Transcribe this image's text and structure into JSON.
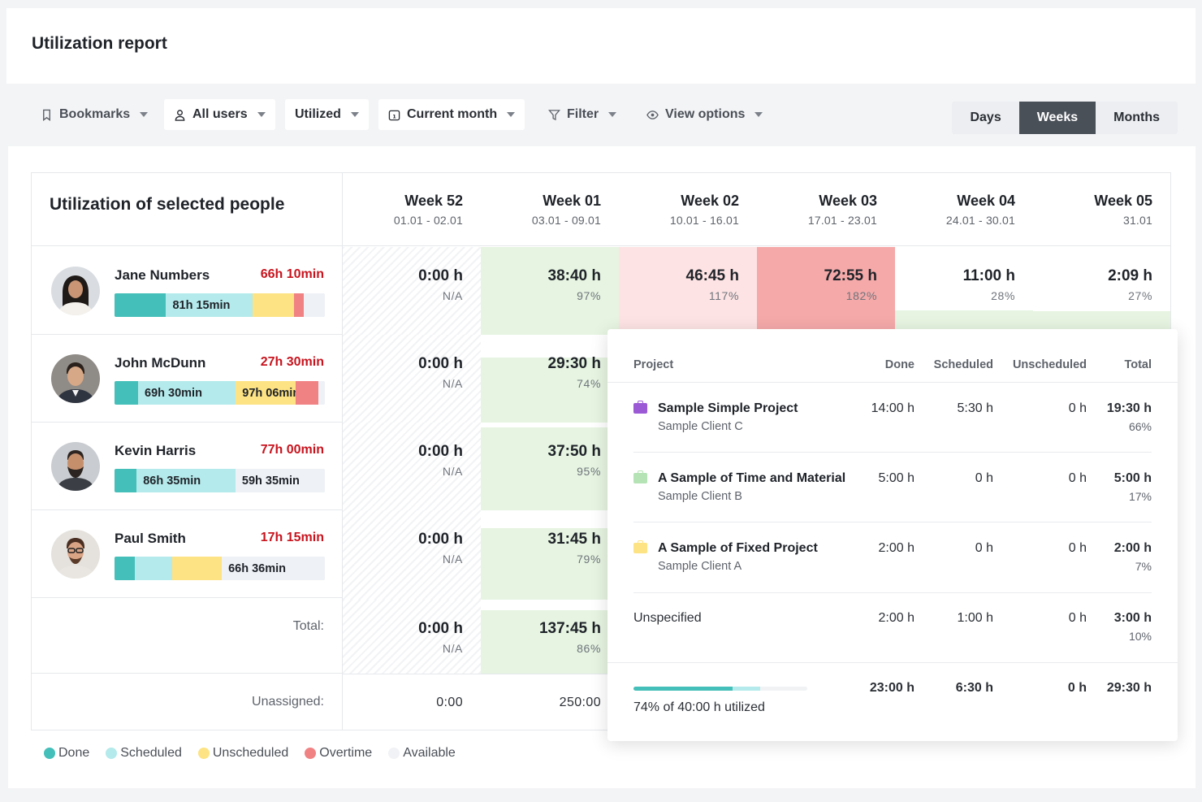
{
  "page": {
    "title": "Utilization report"
  },
  "toolbar": {
    "bookmarks": "Bookmarks",
    "users": "All users",
    "utilized": "Utilized",
    "period": "Current month",
    "filter": "Filter",
    "view_options": "View options",
    "range_options": [
      "Days",
      "Weeks",
      "Months"
    ],
    "range_selected": "Weeks"
  },
  "table": {
    "title": "Utilization of selected people",
    "weeks": [
      {
        "label": "Week 52",
        "dates": "01.01 - 02.01"
      },
      {
        "label": "Week 01",
        "dates": "03.01 - 09.01"
      },
      {
        "label": "Week 02",
        "dates": "10.01 - 16.01"
      },
      {
        "label": "Week 03",
        "dates": "17.01 - 23.01"
      },
      {
        "label": "Week 04",
        "dates": "24.01 - 30.01"
      },
      {
        "label": "Week 05",
        "dates": "31.01"
      }
    ],
    "people": [
      {
        "name": "Jane Numbers",
        "overtime": "66h 10min",
        "bar": {
          "done_share": 0.245,
          "scheduled_share": 0.41,
          "unscheduled_share": 0.2,
          "overtime_share": 0.045,
          "scheduled_label": "81h 15min",
          "unscheduled_label": "",
          "available_label": ""
        },
        "cells": [
          {
            "hours": "0:00 h",
            "pct": "N/A"
          },
          {
            "hours": "38:40 h",
            "pct": "97%"
          },
          {
            "hours": "46:45 h",
            "pct": "117%"
          },
          {
            "hours": "72:55 h",
            "pct": "182%"
          },
          {
            "hours": "11:00 h",
            "pct": "28%"
          },
          {
            "hours": "2:09 h",
            "pct": "27%"
          }
        ]
      },
      {
        "name": "John McDunn",
        "overtime": "27h 30min",
        "bar": {
          "done_share": 0.115,
          "scheduled_share": 0.48,
          "unscheduled_share": 0.295,
          "overtime_share": 0.11,
          "scheduled_label": "69h 30min",
          "unscheduled_label": "97h 06min",
          "available_label": ""
        },
        "cells": [
          {
            "hours": "0:00 h",
            "pct": "N/A"
          },
          {
            "hours": "29:30 h",
            "pct": "74%"
          }
        ]
      },
      {
        "name": "Kevin Harris",
        "overtime": "77h 00min",
        "bar": {
          "done_share": 0.105,
          "scheduled_share": 0.47,
          "unscheduled_share": 0,
          "overtime_share": 0,
          "scheduled_label": "86h 35min",
          "unscheduled_label": "",
          "available_label": "59h 35min"
        },
        "cells": [
          {
            "hours": "0:00 h",
            "pct": "N/A"
          },
          {
            "hours": "37:50 h",
            "pct": "95%"
          }
        ]
      },
      {
        "name": "Paul Smith",
        "overtime": "17h 15min",
        "bar": {
          "done_share": 0.095,
          "scheduled_share": 0.18,
          "unscheduled_share": 0.235,
          "overtime_share": 0,
          "scheduled_label": "",
          "unscheduled_label": "",
          "available_label": "66h 36min"
        },
        "cells": [
          {
            "hours": "0:00 h",
            "pct": "N/A"
          },
          {
            "hours": "31:45 h",
            "pct": "79%"
          }
        ]
      }
    ],
    "total_label": "Total:",
    "totals": [
      {
        "hours": "0:00 h",
        "pct": "N/A"
      },
      {
        "hours": "137:45 h",
        "pct": "86%"
      }
    ],
    "unassigned_label": "Unassigned:",
    "unassigned": [
      "0:00",
      "250:00"
    ]
  },
  "legend": [
    {
      "label": "Done",
      "color": "#45bfb9"
    },
    {
      "label": "Scheduled",
      "color": "#b4eaeb"
    },
    {
      "label": "Unscheduled",
      "color": "#fde383"
    },
    {
      "label": "Overtime",
      "color": "#f18284"
    },
    {
      "label": "Available",
      "color": "#f1f2f5"
    }
  ],
  "popup": {
    "headers": {
      "project": "Project",
      "done": "Done",
      "scheduled": "Scheduled",
      "unscheduled": "Unscheduled",
      "total": "Total"
    },
    "rows": [
      {
        "name": "Sample Simple Project",
        "client": "Sample Client C",
        "color": "#9b59d6",
        "done": "14:00 h",
        "scheduled": "5:30 h",
        "unscheduled": "0 h",
        "total": "19:30 h",
        "share": "66%"
      },
      {
        "name": "A Sample of Time and Material",
        "client": "Sample Client B",
        "color": "#b5e3b5",
        "done": "5:00 h",
        "scheduled": "0 h",
        "unscheduled": "0 h",
        "total": "5:00 h",
        "share": "17%"
      },
      {
        "name": "A Sample of Fixed Project",
        "client": "Sample Client A",
        "color": "#fde383",
        "done": "2:00 h",
        "scheduled": "0 h",
        "unscheduled": "0 h",
        "total": "2:00 h",
        "share": "7%"
      }
    ],
    "unspecified": {
      "name": "Unspecified",
      "done": "2:00 h",
      "scheduled": "1:00 h",
      "unscheduled": "0 h",
      "total": "3:00 h",
      "share": "10%"
    },
    "footer": {
      "done": "23:00 h",
      "scheduled": "6:30 h",
      "unscheduled": "0 h",
      "total": "29:30 h",
      "utilized_text": "74% of 40:00 h utilized",
      "done_fraction": 0.57,
      "scheduled_fraction": 0.16
    }
  }
}
